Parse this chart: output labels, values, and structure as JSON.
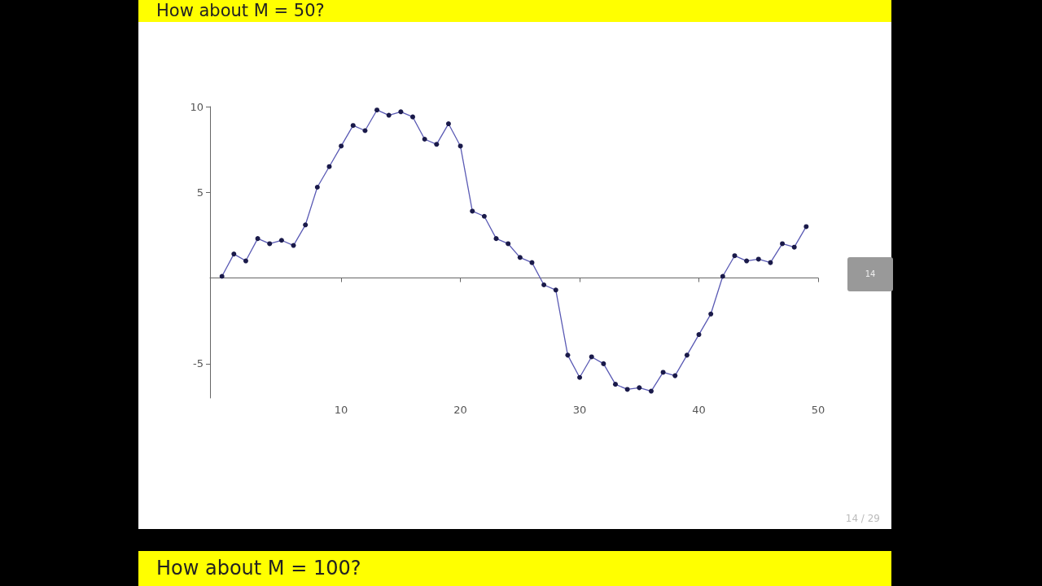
{
  "chart_data": {
    "type": "line",
    "title": "How about M = 50?",
    "x": [
      0,
      1,
      2,
      3,
      4,
      5,
      6,
      7,
      8,
      9,
      10,
      11,
      12,
      13,
      14,
      15,
      16,
      17,
      18,
      19,
      20,
      21,
      22,
      23,
      24,
      25,
      26,
      27,
      28,
      29,
      30,
      31,
      32,
      33,
      34,
      35,
      36,
      37,
      38,
      39,
      40,
      41,
      42,
      43,
      44,
      45,
      46,
      47,
      48,
      49
    ],
    "series": [
      {
        "color": "#5a5ab4",
        "values": [
          0.1,
          1.4,
          1.0,
          2.3,
          2.0,
          2.2,
          1.9,
          3.1,
          5.3,
          6.5,
          7.7,
          8.9,
          8.6,
          9.8,
          9.5,
          9.7,
          9.4,
          8.1,
          7.8,
          9.0,
          7.7,
          3.9,
          3.6,
          2.3,
          2.0,
          1.2,
          0.9,
          -0.4,
          -0.7,
          -4.5,
          -5.8,
          -4.6,
          -5.0,
          -6.2,
          -6.5,
          -6.4,
          -6.6,
          -5.5,
          -5.7,
          -4.5,
          -3.3,
          -2.1,
          0.1,
          1.3,
          1.0,
          1.1,
          0.9,
          2.0,
          1.8,
          3.0
        ]
      }
    ],
    "xlim": [
      -1,
      50
    ],
    "xticks": [
      10,
      20,
      30,
      40,
      50
    ],
    "ylim": [
      -7,
      10
    ],
    "yticks": [
      -5,
      5,
      10
    ],
    "grid": false,
    "marker": "circle",
    "line_style": "solid",
    "annotations": [
      "14",
      "14 / 29",
      "How about M = 100?"
    ]
  }
}
